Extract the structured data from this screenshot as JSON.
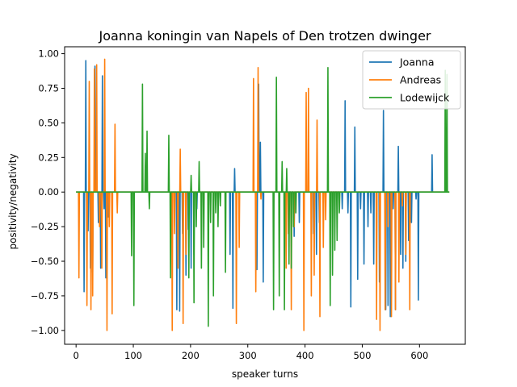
{
  "chart_data": {
    "type": "line",
    "title": "Joanna koningin van Napels of Den trotzen dwinger",
    "xlabel": "speaker turns",
    "ylabel": "positivity/negativity",
    "xlim": [
      -20,
      680
    ],
    "ylim": [
      -1.1,
      1.05
    ],
    "xticks": [
      0,
      100,
      200,
      300,
      400,
      500,
      600
    ],
    "yticks": [
      -1.0,
      -0.75,
      -0.5,
      -0.25,
      0.0,
      0.25,
      0.5,
      0.75,
      1.0
    ],
    "ytick_labels": [
      "−1.00",
      "−0.75",
      "−0.50",
      "−0.25",
      "0.00",
      "0.25",
      "0.50",
      "0.75",
      "1.00"
    ],
    "legend_position": "top-right",
    "x_end": 652,
    "series": [
      {
        "name": "Joanna",
        "color": "#1f77b4",
        "spikes": [
          [
            14,
            -0.72
          ],
          [
            17,
            0.95
          ],
          [
            21,
            -0.28
          ],
          [
            25,
            -0.55
          ],
          [
            29,
            -0.58
          ],
          [
            33,
            0.91
          ],
          [
            39,
            -0.22
          ],
          [
            43,
            -0.55
          ],
          [
            46,
            0.84
          ],
          [
            49,
            -0.12
          ],
          [
            52,
            -0.62
          ],
          [
            56,
            -0.18
          ],
          [
            176,
            -0.85
          ],
          [
            181,
            -0.86
          ],
          [
            186,
            -0.3
          ],
          [
            192,
            -0.6
          ],
          [
            196,
            -0.27
          ],
          [
            201,
            -0.55
          ],
          [
            206,
            -0.45
          ],
          [
            211,
            -0.12
          ],
          [
            269,
            -0.45
          ],
          [
            274,
            -0.84
          ],
          [
            277,
            0.17
          ],
          [
            316,
            -0.56
          ],
          [
            319,
            0.78
          ],
          [
            322,
            0.36
          ],
          [
            327,
            -0.65
          ],
          [
            381,
            -0.32
          ],
          [
            390,
            -0.22
          ],
          [
            415,
            -0.3
          ],
          [
            420,
            -0.45
          ],
          [
            425,
            -0.22
          ],
          [
            465,
            -0.12
          ],
          [
            470,
            0.66
          ],
          [
            475,
            -0.15
          ],
          [
            480,
            -0.83
          ],
          [
            487,
            0.47
          ],
          [
            492,
            -0.63
          ],
          [
            497,
            -0.12
          ],
          [
            503,
            -0.52
          ],
          [
            510,
            -0.25
          ],
          [
            515,
            -0.15
          ],
          [
            520,
            -0.52
          ],
          [
            525,
            -0.35
          ],
          [
            530,
            -0.65
          ],
          [
            537,
            0.59
          ],
          [
            541,
            -0.85
          ],
          [
            545,
            -0.82
          ],
          [
            549,
            -0.9
          ],
          [
            554,
            -0.12
          ],
          [
            558,
            -0.85
          ],
          [
            563,
            0.33
          ],
          [
            567,
            -0.45
          ],
          [
            571,
            -0.55
          ],
          [
            576,
            -0.5
          ],
          [
            581,
            -0.35
          ],
          [
            586,
            -0.22
          ],
          [
            594,
            -0.05
          ],
          [
            598,
            -0.78
          ],
          [
            622,
            0.27
          ],
          [
            630,
            0.0
          ],
          [
            640,
            0.0
          ]
        ]
      },
      {
        "name": "Andreas",
        "color": "#ff7f0e",
        "spikes": [
          [
            5,
            -0.62
          ],
          [
            19,
            -0.82
          ],
          [
            23,
            0.8
          ],
          [
            26,
            -0.85
          ],
          [
            29,
            -0.75
          ],
          [
            32,
            0.89
          ],
          [
            36,
            0.92
          ],
          [
            41,
            -0.25
          ],
          [
            45,
            -0.55
          ],
          [
            50,
            0.96
          ],
          [
            54,
            -1.0
          ],
          [
            58,
            -0.25
          ],
          [
            63,
            -0.88
          ],
          [
            68,
            0.49
          ],
          [
            72,
            -0.15
          ],
          [
            168,
            -1.0
          ],
          [
            172,
            -0.3
          ],
          [
            178,
            -0.55
          ],
          [
            182,
            0.31
          ],
          [
            187,
            -0.95
          ],
          [
            192,
            -0.45
          ],
          [
            280,
            -0.95
          ],
          [
            285,
            -0.4
          ],
          [
            310,
            0.82
          ],
          [
            314,
            -0.72
          ],
          [
            318,
            0.9
          ],
          [
            323,
            -0.05
          ],
          [
            367,
            -0.55
          ],
          [
            371,
            -0.3
          ],
          [
            376,
            -0.85
          ],
          [
            381,
            -0.25
          ],
          [
            398,
            -1.0
          ],
          [
            402,
            0.72
          ],
          [
            406,
            0.75
          ],
          [
            411,
            -0.75
          ],
          [
            416,
            -0.6
          ],
          [
            421,
            0.52
          ],
          [
            426,
            -0.9
          ],
          [
            432,
            -0.4
          ],
          [
            436,
            -0.2
          ],
          [
            525,
            -0.92
          ],
          [
            531,
            -1.0
          ],
          [
            540,
            -0.85
          ],
          [
            545,
            -0.25
          ],
          [
            551,
            -0.9
          ],
          [
            558,
            -0.85
          ],
          [
            564,
            -0.65
          ],
          [
            570,
            -0.1
          ],
          [
            576,
            -0.45
          ],
          [
            583,
            -0.85
          ]
        ]
      },
      {
        "name": "Lodewijck",
        "color": "#2ca02c",
        "spikes": [
          [
            97,
            -0.46
          ],
          [
            101,
            -0.82
          ],
          [
            116,
            0.78
          ],
          [
            121,
            0.28
          ],
          [
            124,
            0.44
          ],
          [
            128,
            -0.12
          ],
          [
            162,
            0.41
          ],
          [
            165,
            -0.62
          ],
          [
            197,
            -0.62
          ],
          [
            201,
            0.12
          ],
          [
            206,
            -0.8
          ],
          [
            210,
            -0.25
          ],
          [
            215,
            0.22
          ],
          [
            219,
            -0.55
          ],
          [
            223,
            -0.4
          ],
          [
            231,
            -0.97
          ],
          [
            235,
            -0.22
          ],
          [
            240,
            -0.75
          ],
          [
            244,
            -0.15
          ],
          [
            248,
            -0.25
          ],
          [
            252,
            -0.1
          ],
          [
            261,
            -0.58
          ],
          [
            345,
            -0.85
          ],
          [
            350,
            0.83
          ],
          [
            355,
            -0.75
          ],
          [
            360,
            0.22
          ],
          [
            364,
            -0.85
          ],
          [
            368,
            0.17
          ],
          [
            372,
            -0.52
          ],
          [
            376,
            -0.55
          ],
          [
            380,
            -0.25
          ],
          [
            384,
            -0.15
          ],
          [
            440,
            0.9
          ],
          [
            444,
            -0.82
          ],
          [
            448,
            -0.6
          ],
          [
            452,
            -0.42
          ],
          [
            456,
            -0.35
          ],
          [
            460,
            -0.15
          ],
          [
            645,
            0.88
          ],
          [
            648,
            0.85
          ]
        ]
      }
    ]
  }
}
